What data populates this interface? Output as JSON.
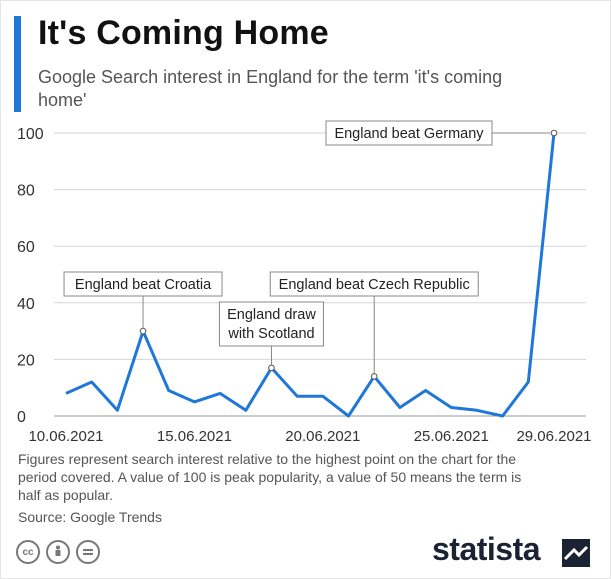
{
  "header": {
    "title": "It's Coming Home",
    "subtitle": "Google Search interest in England for the term 'it's coming home'"
  },
  "footer": {
    "note": "Figures represent search interest relative to the highest point on the chart for the period covered. A value of 100 is peak popularity, a value of 50 means the term is half as popular.",
    "source": "Source: Google Trends",
    "license_icons": [
      "cc-icon",
      "attribution-icon",
      "no-derivatives-icon"
    ],
    "brand": "statista",
    "brand_logo": "statista-logo-icon"
  },
  "colors": {
    "accent": "#1f77d8",
    "line": "#1f77d8",
    "grid": "#d6d6d6"
  },
  "chart_data": {
    "type": "line",
    "title": "",
    "xlabel": "",
    "ylabel": "",
    "ylim": [
      0,
      100
    ],
    "yticks": [
      0,
      20,
      40,
      60,
      80,
      100
    ],
    "xticks": [
      "10.06.2021",
      "15.06.2021",
      "20.06.2021",
      "25.06.2021",
      "29.06.2021"
    ],
    "grid": true,
    "x": [
      "10.06.2021",
      "11.06.2021",
      "12.06.2021",
      "13.06.2021",
      "14.06.2021",
      "15.06.2021",
      "16.06.2021",
      "17.06.2021",
      "18.06.2021",
      "19.06.2021",
      "20.06.2021",
      "21.06.2021",
      "22.06.2021",
      "23.06.2021",
      "24.06.2021",
      "25.06.2021",
      "26.06.2021",
      "27.06.2021",
      "28.06.2021",
      "29.06.2021"
    ],
    "series": [
      {
        "values": [
          8,
          12,
          2,
          30,
          9,
          5,
          8,
          2,
          17,
          7,
          7,
          0,
          14,
          3,
          9,
          3,
          2,
          0,
          12,
          100
        ]
      }
    ],
    "annotations": [
      {
        "text": "England beat Croatia",
        "x": "13.06.2021",
        "y": 30
      },
      {
        "text": "England draw with Scotland",
        "x": "18.06.2021",
        "y": 17
      },
      {
        "text": "England beat Czech Republic",
        "x": "22.06.2021",
        "y": 14
      },
      {
        "text": "England beat Germany",
        "x": "29.06.2021",
        "y": 100
      }
    ]
  }
}
